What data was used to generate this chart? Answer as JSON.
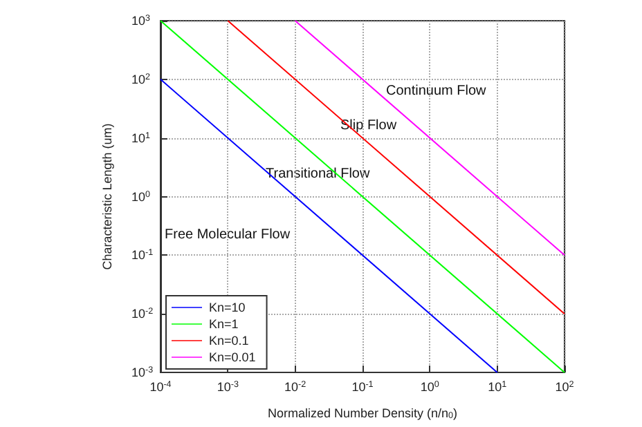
{
  "chart_data": {
    "type": "line",
    "xlabel": "Normalized Number Density (n/n$_{0}$)",
    "ylabel": "Characteristic Length (um)",
    "log": "xy",
    "grid": true,
    "legend": "bottom left",
    "xlim": [
      0.0001,
      100
    ],
    "ylim": [
      0.001,
      1000
    ],
    "xticks": [
      {
        "value": 0.0001,
        "label": "10$^{-4}$"
      },
      {
        "value": 0.001,
        "label": "10$^{-3}$"
      },
      {
        "value": 0.01,
        "label": "10$^{-2}$"
      },
      {
        "value": 0.1,
        "label": "10$^{-1}$"
      },
      {
        "value": 1,
        "label": "10$^{0}$"
      },
      {
        "value": 10,
        "label": "10$^{1}$"
      },
      {
        "value": 100,
        "label": "10$^{2}$"
      }
    ],
    "yticks": [
      {
        "value": 0.001,
        "label": "10$^{-3}$"
      },
      {
        "value": 0.01,
        "label": "10$^{-2}$"
      },
      {
        "value": 0.1,
        "label": "10$^{-1}$"
      },
      {
        "value": 1,
        "label": "10$^{0}$"
      },
      {
        "value": 10,
        "label": "10$^{1}$"
      },
      {
        "value": 100,
        "label": "10$^{2}$"
      },
      {
        "value": 1000,
        "label": "10$^{3}$"
      }
    ],
    "series": [
      {
        "name": "Kn=10",
        "color": "#0000ff",
        "x": [
          0.0001,
          10
        ],
        "values": [
          100,
          0.001
        ]
      },
      {
        "name": "Kn=1",
        "color": "#00ff00",
        "x": [
          0.0001,
          100
        ],
        "values": [
          1000,
          0.001
        ]
      },
      {
        "name": "Kn=0.1",
        "color": "#ff0000",
        "x": [
          0.001,
          100
        ],
        "values": [
          1000,
          0.01
        ]
      },
      {
        "name": "Kn=0.01",
        "color": "#ff00ff",
        "x": [
          0.01,
          100
        ],
        "values": [
          1000,
          0.1
        ]
      }
    ],
    "annotations": [
      "Continuum Flow",
      "Slip Flow",
      "Transitional Flow",
      "Free Molecular Flow"
    ]
  }
}
